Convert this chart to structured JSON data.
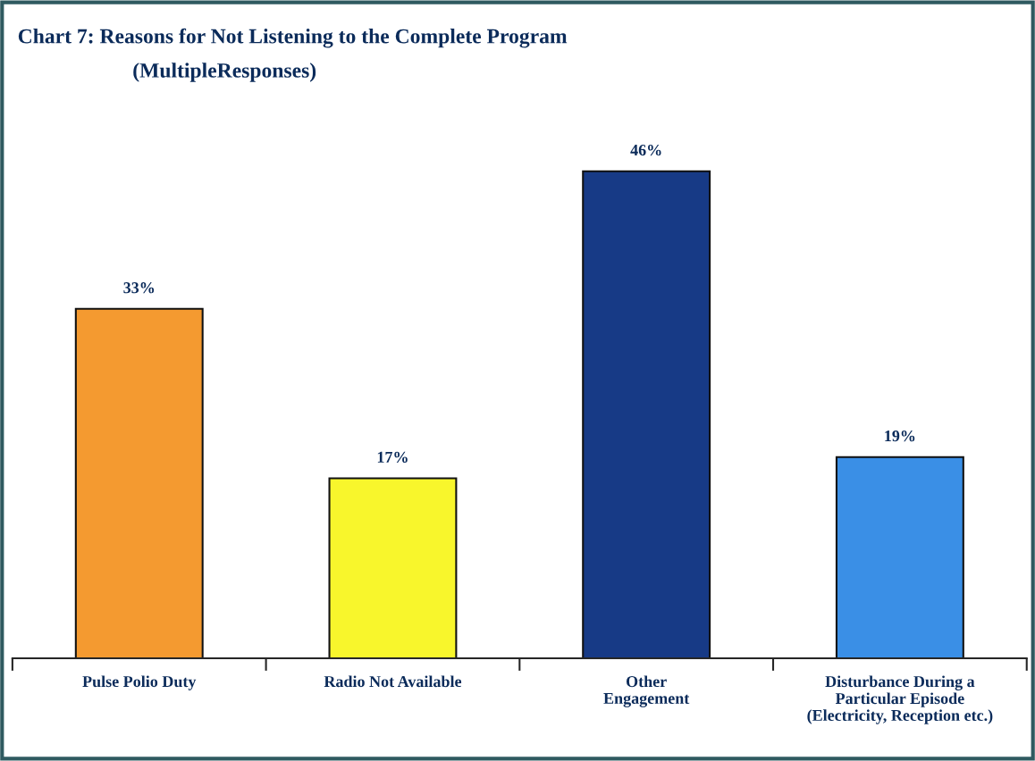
{
  "chart_data": {
    "type": "bar",
    "title": "Chart 7: Reasons for Not Listening to the Complete Program",
    "subtitle": "(MultipleResponses)",
    "categories": [
      "Pulse Polio Duty",
      "Radio Not Available",
      "Other\nEngagement",
      "Disturbance During a\nParticular Episode\n(Electricity, Reception etc.)"
    ],
    "values": [
      33,
      17,
      46,
      19
    ],
    "value_labels": [
      "33%",
      "17%",
      "46%",
      "19%"
    ],
    "colors": [
      "#f49a30",
      "#f8f62c",
      "#173a86",
      "#3a8fe6"
    ],
    "tick_labels": "x",
    "grid": false,
    "legend": false
  }
}
